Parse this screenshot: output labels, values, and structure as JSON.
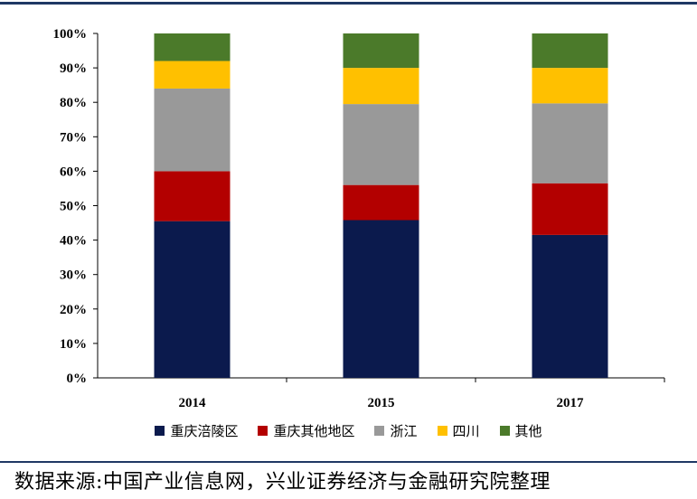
{
  "chart_data": {
    "type": "bar",
    "stacked": true,
    "categories": [
      "2014",
      "2015",
      "2017"
    ],
    "ylim": [
      0,
      100
    ],
    "yticks": [
      "0%",
      "10%",
      "20%",
      "30%",
      "40%",
      "50%",
      "60%",
      "70%",
      "80%",
      "90%",
      "100%"
    ],
    "series": [
      {
        "name": "重庆涪陵区",
        "color": "#0b1a4d",
        "values": [
          45.5,
          45.8,
          41.5
        ]
      },
      {
        "name": "重庆其他地区",
        "color": "#b30000",
        "values": [
          14.5,
          10.2,
          15.0
        ]
      },
      {
        "name": "浙江",
        "color": "#999999",
        "values": [
          24.0,
          23.5,
          23.2
        ]
      },
      {
        "name": "四川",
        "color": "#ffc000",
        "values": [
          8.0,
          10.5,
          10.3
        ]
      },
      {
        "name": "其他",
        "color": "#4b7a2a",
        "values": [
          8.0,
          10.0,
          10.0
        ]
      }
    ],
    "legend_position": "bottom",
    "grid": false
  },
  "source": "数据来源:中国产业信息网，兴业证券经济与金融研究院整理"
}
